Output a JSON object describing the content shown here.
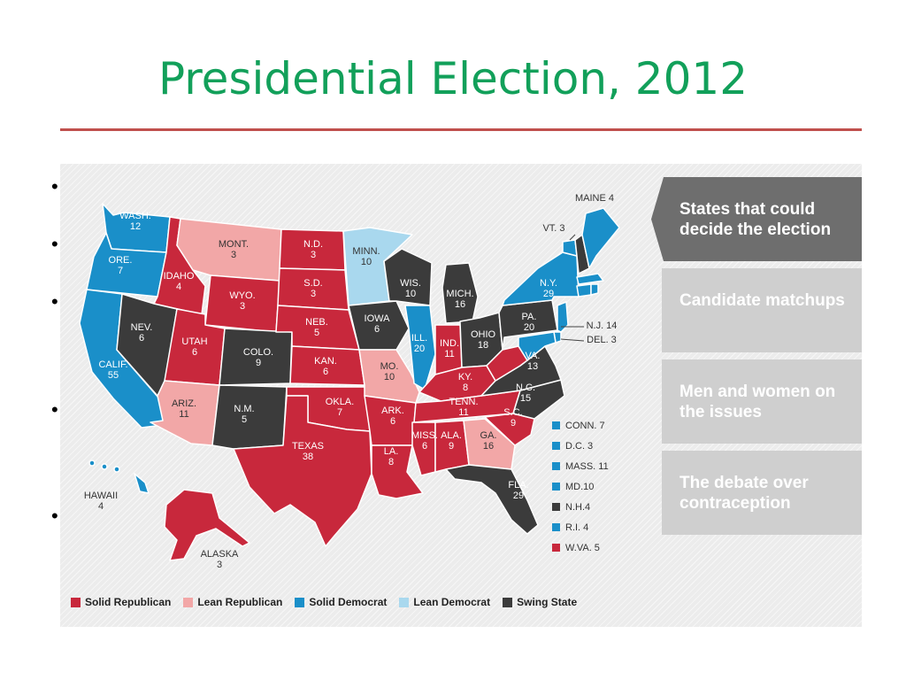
{
  "slide": {
    "title": "Presidential Election, 2012"
  },
  "colors": {
    "solid_republican": "#c8283c",
    "lean_republican": "#f2a7a7",
    "solid_democrat": "#1a8fc9",
    "lean_democrat": "#a9d8ee",
    "swing_state": "#3b3b3b",
    "title": "#12a05a",
    "rule": "#c0504d"
  },
  "side_tabs": [
    {
      "label": "States that could decide the election",
      "active": true
    },
    {
      "label": "Candidate matchups",
      "active": false
    },
    {
      "label": "Men and women on the issues",
      "active": false
    },
    {
      "label": "The debate over contraception",
      "active": false
    }
  ],
  "legend": [
    {
      "label": "Solid Republican",
      "category": "solid_republican"
    },
    {
      "label": "Lean Republican",
      "category": "lean_republican"
    },
    {
      "label": "Solid Democrat",
      "category": "solid_democrat"
    },
    {
      "label": "Lean Democrat",
      "category": "lean_democrat"
    },
    {
      "label": "Swing State",
      "category": "swing_state"
    }
  ],
  "small_states": [
    {
      "label": "CONN. 7",
      "category": "solid_democrat"
    },
    {
      "label": "D.C. 3",
      "category": "solid_democrat"
    },
    {
      "label": "MASS. 11",
      "category": "solid_democrat"
    },
    {
      "label": "MD.10",
      "category": "solid_democrat"
    },
    {
      "label": "N.H.4",
      "category": "swing_state"
    },
    {
      "label": "R.I. 4",
      "category": "solid_democrat"
    },
    {
      "label": "W.VA. 5",
      "category": "solid_republican"
    }
  ],
  "states": [
    {
      "id": "wa",
      "name": "WASH.",
      "votes": "12",
      "category": "solid_democrat"
    },
    {
      "id": "or",
      "name": "ORE.",
      "votes": "7",
      "category": "solid_democrat"
    },
    {
      "id": "ca",
      "name": "CALIF.",
      "votes": "55",
      "category": "solid_democrat"
    },
    {
      "id": "id",
      "name": "IDAHO",
      "votes": "4",
      "category": "solid_republican"
    },
    {
      "id": "nv",
      "name": "NEV.",
      "votes": "6",
      "category": "swing_state"
    },
    {
      "id": "mt",
      "name": "MONT.",
      "votes": "3",
      "category": "lean_republican"
    },
    {
      "id": "wy",
      "name": "WYO.",
      "votes": "3",
      "category": "solid_republican"
    },
    {
      "id": "ut",
      "name": "UTAH",
      "votes": "6",
      "category": "solid_republican"
    },
    {
      "id": "az",
      "name": "ARIZ.",
      "votes": "11",
      "category": "lean_republican"
    },
    {
      "id": "co",
      "name": "COLO.",
      "votes": "9",
      "category": "swing_state"
    },
    {
      "id": "nm",
      "name": "N.M.",
      "votes": "5",
      "category": "swing_state"
    },
    {
      "id": "nd",
      "name": "N.D.",
      "votes": "3",
      "category": "solid_republican"
    },
    {
      "id": "sd",
      "name": "S.D.",
      "votes": "3",
      "category": "solid_republican"
    },
    {
      "id": "ne",
      "name": "NEB.",
      "votes": "5",
      "category": "solid_republican"
    },
    {
      "id": "ks",
      "name": "KAN.",
      "votes": "6",
      "category": "solid_republican"
    },
    {
      "id": "ok",
      "name": "OKLA.",
      "votes": "7",
      "category": "solid_republican"
    },
    {
      "id": "tx",
      "name": "TEXAS",
      "votes": "38",
      "category": "solid_republican"
    },
    {
      "id": "mn",
      "name": "MINN.",
      "votes": "10",
      "category": "lean_democrat"
    },
    {
      "id": "ia",
      "name": "IOWA",
      "votes": "6",
      "category": "swing_state"
    },
    {
      "id": "mo",
      "name": "MO.",
      "votes": "10",
      "category": "lean_republican"
    },
    {
      "id": "ar",
      "name": "ARK.",
      "votes": "6",
      "category": "solid_republican"
    },
    {
      "id": "la",
      "name": "LA.",
      "votes": "8",
      "category": "solid_republican"
    },
    {
      "id": "wi",
      "name": "WIS.",
      "votes": "10",
      "category": "swing_state"
    },
    {
      "id": "il",
      "name": "ILL.",
      "votes": "20",
      "category": "solid_democrat"
    },
    {
      "id": "mi",
      "name": "MICH.",
      "votes": "16",
      "category": "swing_state"
    },
    {
      "id": "in",
      "name": "IND.",
      "votes": "11",
      "category": "solid_republican"
    },
    {
      "id": "oh",
      "name": "OHIO",
      "votes": "18",
      "category": "swing_state"
    },
    {
      "id": "ky",
      "name": "KY.",
      "votes": "8",
      "category": "solid_republican"
    },
    {
      "id": "tn",
      "name": "TENN.",
      "votes": "11",
      "category": "solid_republican"
    },
    {
      "id": "ms",
      "name": "MISS.",
      "votes": "6",
      "category": "solid_republican"
    },
    {
      "id": "al",
      "name": "ALA.",
      "votes": "9",
      "category": "solid_republican"
    },
    {
      "id": "ga",
      "name": "GA.",
      "votes": "16",
      "category": "lean_republican"
    },
    {
      "id": "fl",
      "name": "FLA.",
      "votes": "29",
      "category": "swing_state"
    },
    {
      "id": "sc",
      "name": "S.C.",
      "votes": "9",
      "category": "solid_republican"
    },
    {
      "id": "nc",
      "name": "N.C.",
      "votes": "15",
      "category": "swing_state"
    },
    {
      "id": "va",
      "name": "VA.",
      "votes": "13",
      "category": "swing_state"
    },
    {
      "id": "pa",
      "name": "PA.",
      "votes": "20",
      "category": "swing_state"
    },
    {
      "id": "ny",
      "name": "N.Y.",
      "votes": "29",
      "category": "solid_democrat"
    },
    {
      "id": "vt",
      "name": "VT.",
      "votes": "3",
      "category": "solid_democrat"
    },
    {
      "id": "me",
      "name": "MAINE",
      "votes": "4",
      "category": "solid_democrat"
    },
    {
      "id": "nj",
      "name": "N.J.",
      "votes": "14",
      "category": "solid_democrat"
    },
    {
      "id": "de",
      "name": "DEL.",
      "votes": "3",
      "category": "solid_democrat"
    },
    {
      "id": "ak",
      "name": "ALASKA",
      "votes": "3",
      "category": "solid_republican"
    },
    {
      "id": "hi",
      "name": "HAWAII",
      "votes": "4",
      "category": "solid_democrat"
    }
  ]
}
